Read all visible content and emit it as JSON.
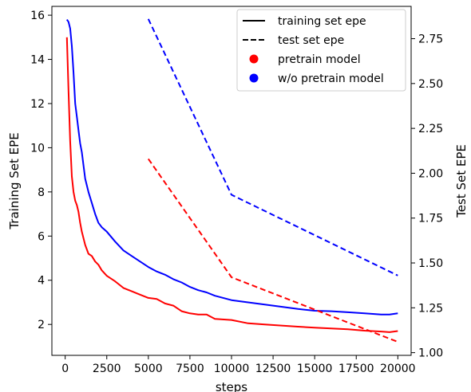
{
  "chart_data": {
    "type": "line",
    "title": "",
    "xlabel": "steps",
    "ylabel_left": "Training Set EPE",
    "ylabel_right": "Test Set EPE",
    "xlim": [
      -800,
      20800
    ],
    "ylim_left": [
      0.6,
      16.4
    ],
    "ylim_right": [
      0.985,
      2.93
    ],
    "x_ticks": [
      0,
      2500,
      5000,
      7500,
      10000,
      12500,
      15000,
      17500,
      20000
    ],
    "y_left_ticks": [
      2,
      4,
      6,
      8,
      10,
      12,
      14,
      16
    ],
    "y_right_ticks": [
      1.0,
      1.25,
      1.5,
      1.75,
      2.0,
      2.25,
      2.5,
      2.75
    ],
    "legend_position": "top-right",
    "colors": {
      "pretrain": "#ff0000",
      "no_pretrain": "#0000ff",
      "black": "#000000"
    },
    "legend": [
      {
        "label": "training set epe",
        "marker": "solid-line"
      },
      {
        "label": "test set epe",
        "marker": "dashed-line"
      },
      {
        "label": "pretrain model",
        "marker": "red-dot"
      },
      {
        "label": "w/o pretrain model",
        "marker": "blue-dot"
      }
    ],
    "series": [
      {
        "name": "training set epe (pretrain model)",
        "axis": "left",
        "style": "solid",
        "color": "#ff0000",
        "x": [
          100,
          200,
          300,
          400,
          500,
          600,
          700,
          800,
          900,
          1000,
          1200,
          1400,
          1600,
          1800,
          2000,
          2200,
          2500,
          3000,
          3500,
          4000,
          4500,
          5000,
          5500,
          6000,
          6500,
          7000,
          7500,
          8000,
          8500,
          9000,
          10000,
          11000,
          12000,
          13000,
          14000,
          15000,
          16000,
          17000,
          18000,
          19000,
          19500,
          20000
        ],
        "y": [
          15.0,
          12.6,
          10.3,
          8.7,
          8.0,
          7.6,
          7.4,
          7.1,
          6.6,
          6.2,
          5.6,
          5.2,
          5.1,
          4.85,
          4.7,
          4.45,
          4.2,
          3.95,
          3.65,
          3.5,
          3.35,
          3.2,
          3.15,
          2.95,
          2.85,
          2.6,
          2.5,
          2.45,
          2.45,
          2.25,
          2.2,
          2.05,
          2.0,
          1.95,
          1.9,
          1.85,
          1.82,
          1.78,
          1.72,
          1.68,
          1.65,
          1.7
        ]
      },
      {
        "name": "training set epe (w/o pretrain model)",
        "axis": "left",
        "style": "solid",
        "color": "#0000ff",
        "x": [
          100,
          200,
          300,
          400,
          500,
          600,
          700,
          800,
          900,
          1000,
          1200,
          1400,
          1600,
          1800,
          2000,
          2200,
          2500,
          3000,
          3500,
          4000,
          4500,
          5000,
          5500,
          6000,
          6500,
          7000,
          7500,
          8000,
          8500,
          9000,
          10000,
          11000,
          12000,
          13000,
          14000,
          15000,
          16000,
          17000,
          18000,
          19000,
          19500,
          20000
        ],
        "y": [
          15.8,
          15.7,
          15.4,
          14.6,
          13.4,
          12.0,
          11.4,
          10.8,
          10.2,
          9.8,
          8.6,
          8.0,
          7.5,
          7.0,
          6.6,
          6.4,
          6.2,
          5.75,
          5.35,
          5.1,
          4.85,
          4.6,
          4.4,
          4.25,
          4.05,
          3.9,
          3.7,
          3.55,
          3.45,
          3.3,
          3.1,
          3.0,
          2.9,
          2.8,
          2.7,
          2.62,
          2.6,
          2.55,
          2.5,
          2.45,
          2.45,
          2.5
        ]
      },
      {
        "name": "test set epe (pretrain model)",
        "axis": "right",
        "style": "dashed",
        "color": "#ff0000",
        "x": [
          5000,
          10000,
          20000
        ],
        "y": [
          2.08,
          1.42,
          1.06
        ]
      },
      {
        "name": "test set epe (w/o pretrain model)",
        "axis": "right",
        "style": "dashed",
        "color": "#0000ff",
        "x": [
          5000,
          10000,
          20000
        ],
        "y": [
          2.86,
          1.88,
          1.43
        ]
      }
    ]
  }
}
